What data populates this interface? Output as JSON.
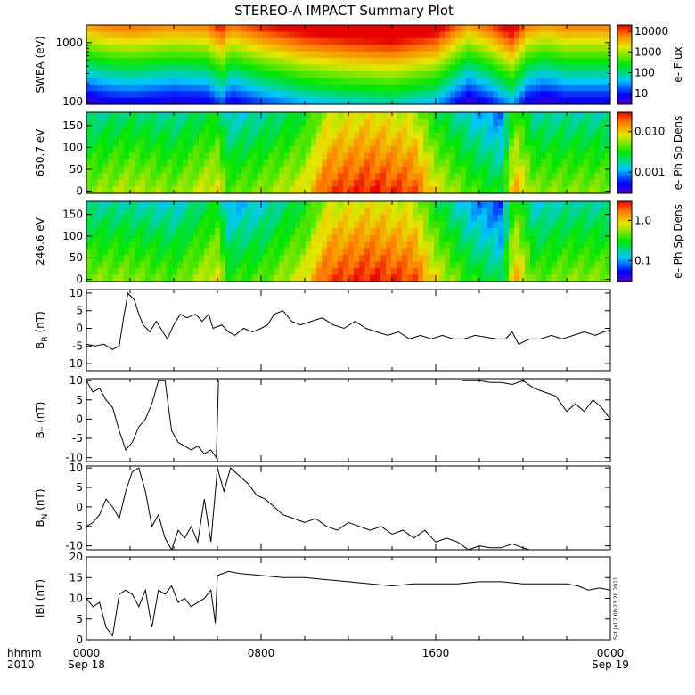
{
  "title": "STEREO-A IMPACT Summary Plot",
  "stamp": "Sat Jul  2 08:23:28 2011",
  "colors": {
    "axis": "#000000",
    "trace": "#000000",
    "background": "#ffffff"
  },
  "x_axis": {
    "hhmm_label": "hhmm",
    "year_label": "2010",
    "ticks": [
      {
        "hhmm": "0000",
        "date": "Sep 18",
        "hour": 0
      },
      {
        "hhmm": "0800",
        "date": "",
        "hour": 8
      },
      {
        "hhmm": "1600",
        "date": "",
        "hour": 16
      },
      {
        "hhmm": "0000",
        "date": "Sep 19",
        "hour": 24
      }
    ],
    "range_hours": [
      0,
      24
    ]
  },
  "chart_data": [
    {
      "type": "heatmap",
      "ylabel": "SWEA (eV)",
      "ylim": [
        90,
        2000
      ],
      "yscale": "log",
      "yticks": [
        100,
        1000
      ],
      "ytick_labels": [
        "100",
        "1000"
      ],
      "colorbar": {
        "label": "e- Flux",
        "scale": "log",
        "range": [
          3,
          20000
        ],
        "ticks": [
          10,
          100,
          1000,
          10000
        ],
        "tick_labels": [
          "10",
          "100",
          "1000",
          "10000"
        ]
      },
      "intensity_profile": [
        [
          0,
          0.45
        ],
        [
          1,
          0.5
        ],
        [
          2,
          0.52
        ],
        [
          3,
          0.5
        ],
        [
          4,
          0.48
        ],
        [
          5.5,
          0.5
        ],
        [
          6.2,
          0.62
        ],
        [
          6.6,
          0.5
        ],
        [
          8,
          0.6
        ],
        [
          10,
          0.7
        ],
        [
          12,
          0.75
        ],
        [
          14,
          0.78
        ],
        [
          16,
          0.7
        ],
        [
          17.5,
          0.45
        ],
        [
          18.5,
          0.55
        ],
        [
          19.5,
          0.7
        ],
        [
          20.2,
          0.5
        ],
        [
          21,
          0.45
        ],
        [
          22,
          0.5
        ],
        [
          24,
          0.5
        ]
      ]
    },
    {
      "type": "heatmap",
      "ylabel": "650.7 eV",
      "ylim": [
        -5,
        180
      ],
      "yticks": [
        0,
        50,
        100,
        150
      ],
      "ytick_labels": [
        "0",
        "50",
        "100",
        "150"
      ],
      "colorbar": {
        "label": "e- Ph Sp Dens",
        "scale": "log",
        "range": [
          0.0003,
          0.03
        ],
        "ticks": [
          0.001,
          0.01
        ],
        "tick_labels": [
          "0.001",
          "0.010"
        ]
      },
      "intensity_profile": [
        [
          0,
          0.5
        ],
        [
          2,
          0.55
        ],
        [
          4,
          0.5
        ],
        [
          6,
          0.6
        ],
        [
          6.5,
          0.45
        ],
        [
          8,
          0.5
        ],
        [
          10,
          0.6
        ],
        [
          11,
          0.8
        ],
        [
          13,
          0.85
        ],
        [
          15,
          0.8
        ],
        [
          16,
          0.6
        ],
        [
          17.5,
          0.45
        ],
        [
          19,
          0.35
        ],
        [
          19.6,
          0.7
        ],
        [
          20.5,
          0.5
        ],
        [
          22,
          0.5
        ],
        [
          24,
          0.5
        ]
      ]
    },
    {
      "type": "heatmap",
      "ylabel": "246.6 eV",
      "ylim": [
        -5,
        180
      ],
      "yticks": [
        0,
        50,
        100,
        150
      ],
      "ytick_labels": [
        "0",
        "50",
        "100",
        "150"
      ],
      "colorbar": {
        "label": "e- Ph Sp Dens",
        "scale": "log",
        "range": [
          0.03,
          3
        ],
        "ticks": [
          0.1,
          1
        ],
        "tick_labels": [
          "0.1",
          "1.0"
        ]
      },
      "intensity_profile": [
        [
          0,
          0.5
        ],
        [
          2,
          0.5
        ],
        [
          4,
          0.45
        ],
        [
          6,
          0.6
        ],
        [
          6.5,
          0.4
        ],
        [
          8,
          0.45
        ],
        [
          10,
          0.6
        ],
        [
          11,
          0.8
        ],
        [
          13,
          0.85
        ],
        [
          15,
          0.8
        ],
        [
          16,
          0.6
        ],
        [
          17.5,
          0.4
        ],
        [
          19,
          0.3
        ],
        [
          19.6,
          0.7
        ],
        [
          20.5,
          0.45
        ],
        [
          22,
          0.5
        ],
        [
          24,
          0.5
        ]
      ]
    },
    {
      "type": "line",
      "ylabel": "B_R (nT)",
      "ylabel_main": "B",
      "ylabel_sub": "R",
      "ylabel_unit": "(nT)",
      "ylim": [
        -12,
        11
      ],
      "yticks": [
        -10,
        -5,
        0,
        5,
        10
      ],
      "ytick_labels": [
        "-10",
        "-5",
        "0",
        "5",
        "10"
      ],
      "x": [
        0,
        0.4,
        0.8,
        1.2,
        1.5,
        1.7,
        1.9,
        2.2,
        2.4,
        2.6,
        2.9,
        3.2,
        3.5,
        3.7,
        4.0,
        4.3,
        4.6,
        5.0,
        5.3,
        5.6,
        5.8,
        6.2,
        6.5,
        6.8,
        7.2,
        7.6,
        8.0,
        8.3,
        8.6,
        9.0,
        9.4,
        9.8,
        10.3,
        10.8,
        11.3,
        11.8,
        12.3,
        12.8,
        13.3,
        13.8,
        14.3,
        14.8,
        15.3,
        15.8,
        16.3,
        16.8,
        17.3,
        17.8,
        18.3,
        18.8,
        19.2,
        19.5,
        19.8,
        20.3,
        20.8,
        21.3,
        21.8,
        22.3,
        22.8,
        23.3,
        23.7,
        24
      ],
      "y": [
        -4.5,
        -5,
        -4.5,
        -6,
        -5,
        3,
        10,
        8,
        4,
        1,
        -1,
        2,
        -1,
        -3,
        1,
        4,
        3,
        4,
        2,
        4,
        0,
        1,
        -1,
        -2,
        0,
        -1,
        0,
        1,
        4,
        5,
        2,
        1,
        2,
        3,
        1,
        0,
        2,
        0,
        -1,
        -2,
        -1,
        -3,
        -2,
        -3,
        -2,
        -3,
        -3,
        -2,
        -2.5,
        -3,
        -3,
        -1,
        -4.5,
        -3,
        -3,
        -2,
        -3,
        -2,
        -1,
        -2,
        -1,
        -0.5
      ]
    },
    {
      "type": "line",
      "ylabel": "B_T (nT)",
      "ylabel_main": "B",
      "ylabel_sub": "T",
      "ylabel_unit": "(nT)",
      "ylim": [
        -11,
        10.5
      ],
      "yticks": [
        -10,
        -5,
        0,
        5,
        10
      ],
      "ytick_labels": [
        "-10",
        "-5",
        "0",
        "5",
        "10"
      ],
      "x": [
        0,
        0.3,
        0.6,
        0.9,
        1.2,
        1.5,
        1.8,
        2.1,
        2.4,
        2.7,
        3.0,
        3.3,
        3.6,
        3.9,
        4.2,
        4.5,
        4.8,
        5.1,
        5.4,
        5.7,
        5.95,
        6.05
      ],
      "y": [
        10,
        7,
        8,
        5,
        3,
        -3,
        -8,
        -6,
        -2,
        0,
        4,
        10,
        10,
        -3,
        -6,
        -7,
        -8,
        -7,
        -9,
        -8,
        -10,
        10
      ],
      "segments": [
        {
          "x": [
            17.2,
            18.0,
            18.5,
            19.0,
            19.5,
            20.0,
            20.5,
            21.0,
            21.5,
            22.0,
            22.4,
            22.8,
            23.2,
            23.6,
            24
          ],
          "y": [
            10,
            10,
            9.5,
            9.5,
            9,
            10,
            8,
            7,
            6,
            2,
            4,
            2,
            5,
            3,
            0
          ]
        }
      ]
    },
    {
      "type": "line",
      "ylabel": "B_N (nT)",
      "ylabel_main": "B",
      "ylabel_sub": "N",
      "ylabel_unit": "(nT)",
      "ylim": [
        -11,
        10.5
      ],
      "yticks": [
        -10,
        -5,
        0,
        5,
        10
      ],
      "ytick_labels": [
        "-10",
        "-5",
        "0",
        "5",
        "10"
      ],
      "x": [
        0,
        0.3,
        0.6,
        0.9,
        1.2,
        1.5,
        1.8,
        2.1,
        2.4,
        2.7,
        3.0,
        3.3,
        3.6,
        3.9,
        4.2,
        4.5,
        4.8,
        5.1,
        5.4,
        5.7,
        6.0,
        6.3,
        6.6,
        7.0,
        7.4,
        7.8,
        8.2,
        8.6,
        9.0,
        9.5,
        10.0,
        10.5,
        11.0,
        11.5,
        12.0,
        12.5,
        13.0,
        13.5,
        14.0,
        14.5,
        15.0,
        15.5,
        16.0,
        16.5,
        17.0,
        17.5,
        18.0,
        18.5,
        19.0,
        19.5,
        20.0,
        20.3
      ],
      "y": [
        -5,
        -4,
        -2,
        2,
        0,
        -3,
        4,
        9,
        10,
        4,
        -5,
        -2,
        -8,
        -11,
        -6,
        -8,
        -5,
        -9,
        2,
        -9,
        10,
        4,
        10,
        8,
        6,
        3,
        2,
        0,
        -2,
        -3,
        -4,
        -3,
        -5,
        -6,
        -4,
        -5,
        -6,
        -5,
        -7,
        -6,
        -8,
        -6,
        -9,
        -8,
        -9,
        -11,
        -10,
        -10.5,
        -10.5,
        -9.5,
        -10.5,
        -11
      ]
    },
    {
      "type": "line",
      "ylabel": "|B| (nT)",
      "ylabel_text": "lBl (nT)",
      "ylim": [
        0,
        20
      ],
      "yticks": [
        0,
        5,
        10,
        15,
        20
      ],
      "ytick_labels": [
        "0",
        "5",
        "10",
        "15",
        "20"
      ],
      "x": [
        0,
        0.3,
        0.6,
        0.9,
        1.2,
        1.5,
        1.8,
        2.1,
        2.4,
        2.7,
        3.0,
        3.3,
        3.6,
        3.9,
        4.2,
        4.5,
        4.8,
        5.1,
        5.4,
        5.7,
        5.9,
        6.0,
        6.5,
        7.0,
        8.0,
        9.0,
        10.0,
        11.0,
        12.0,
        13.0,
        14.0,
        15.0,
        16.0,
        17.0,
        18.0,
        19.0,
        20.0,
        21.0,
        22.0,
        22.5,
        23.0,
        23.5,
        24
      ],
      "y": [
        10,
        8,
        9,
        3,
        1,
        11,
        12,
        11,
        8,
        12,
        3,
        12,
        11,
        13,
        9,
        10,
        8,
        9,
        10,
        12,
        4,
        15.5,
        16.5,
        16,
        15.5,
        15,
        15,
        14.5,
        14,
        13.5,
        13,
        13.5,
        13.5,
        13.5,
        14,
        14,
        13.5,
        13.5,
        13.5,
        13,
        12,
        12.5,
        12
      ]
    }
  ]
}
